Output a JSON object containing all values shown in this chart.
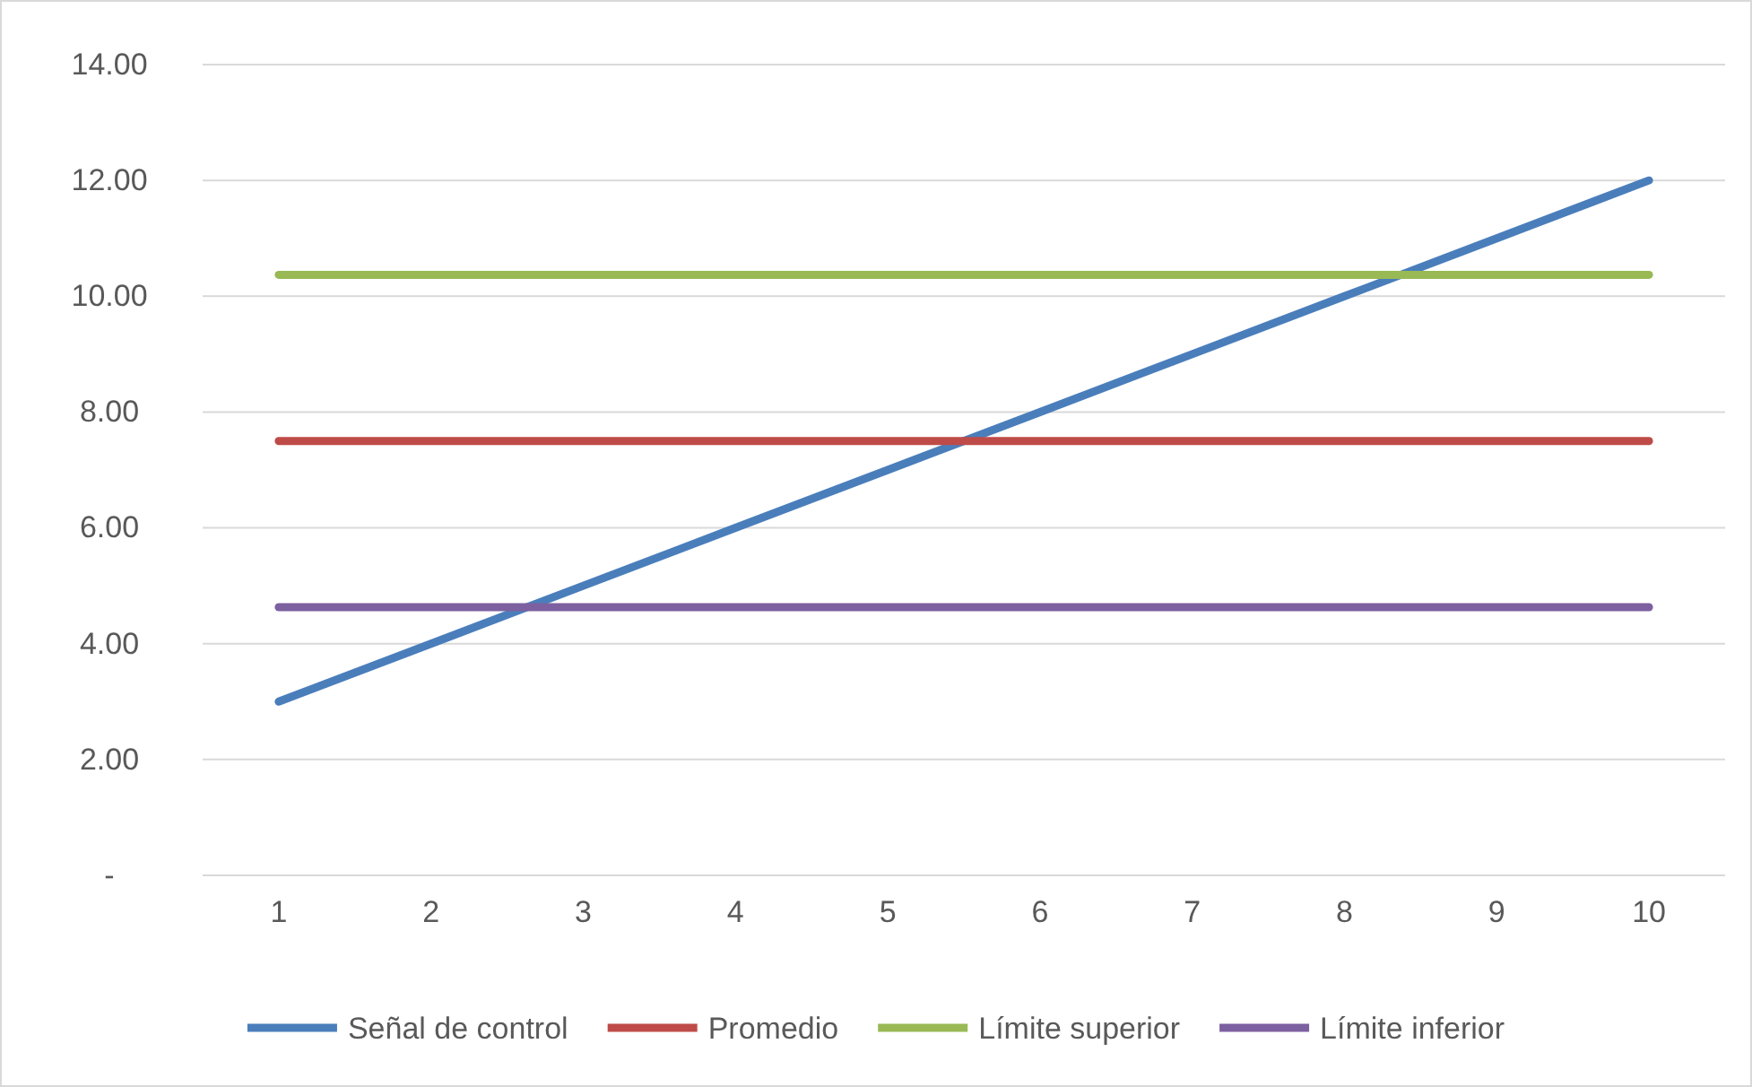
{
  "chart_data": {
    "type": "line",
    "categories": [
      "1",
      "2",
      "3",
      "4",
      "5",
      "6",
      "7",
      "8",
      "9",
      "10"
    ],
    "series": [
      {
        "name": "Señal de control",
        "color": "#4a7ebb",
        "values": [
          3,
          4,
          5,
          6,
          7,
          8,
          9,
          10,
          11,
          12
        ]
      },
      {
        "name": "Promedio",
        "color": "#be4b48",
        "values": [
          7.5,
          7.5,
          7.5,
          7.5,
          7.5,
          7.5,
          7.5,
          7.5,
          7.5,
          7.5
        ]
      },
      {
        "name": "Límite superior",
        "color": "#98b954",
        "values": [
          10.37,
          10.37,
          10.37,
          10.37,
          10.37,
          10.37,
          10.37,
          10.37,
          10.37,
          10.37
        ]
      },
      {
        "name": "Límite inferior",
        "color": "#7d60a0",
        "values": [
          4.63,
          4.63,
          4.63,
          4.63,
          4.63,
          4.63,
          4.63,
          4.63,
          4.63,
          4.63
        ]
      }
    ],
    "ylim": [
      0,
      14
    ],
    "yticks": [
      {
        "value": 0,
        "label": "-"
      },
      {
        "value": 2,
        "label": "2.00"
      },
      {
        "value": 4,
        "label": "4.00"
      },
      {
        "value": 6,
        "label": "6.00"
      },
      {
        "value": 8,
        "label": "8.00"
      },
      {
        "value": 10,
        "label": "10.00"
      },
      {
        "value": 12,
        "label": "12.00"
      },
      {
        "value": 14,
        "label": "14.00"
      }
    ],
    "grid": "y",
    "legend": "bottom",
    "line_style": "solid",
    "marker": "none"
  }
}
